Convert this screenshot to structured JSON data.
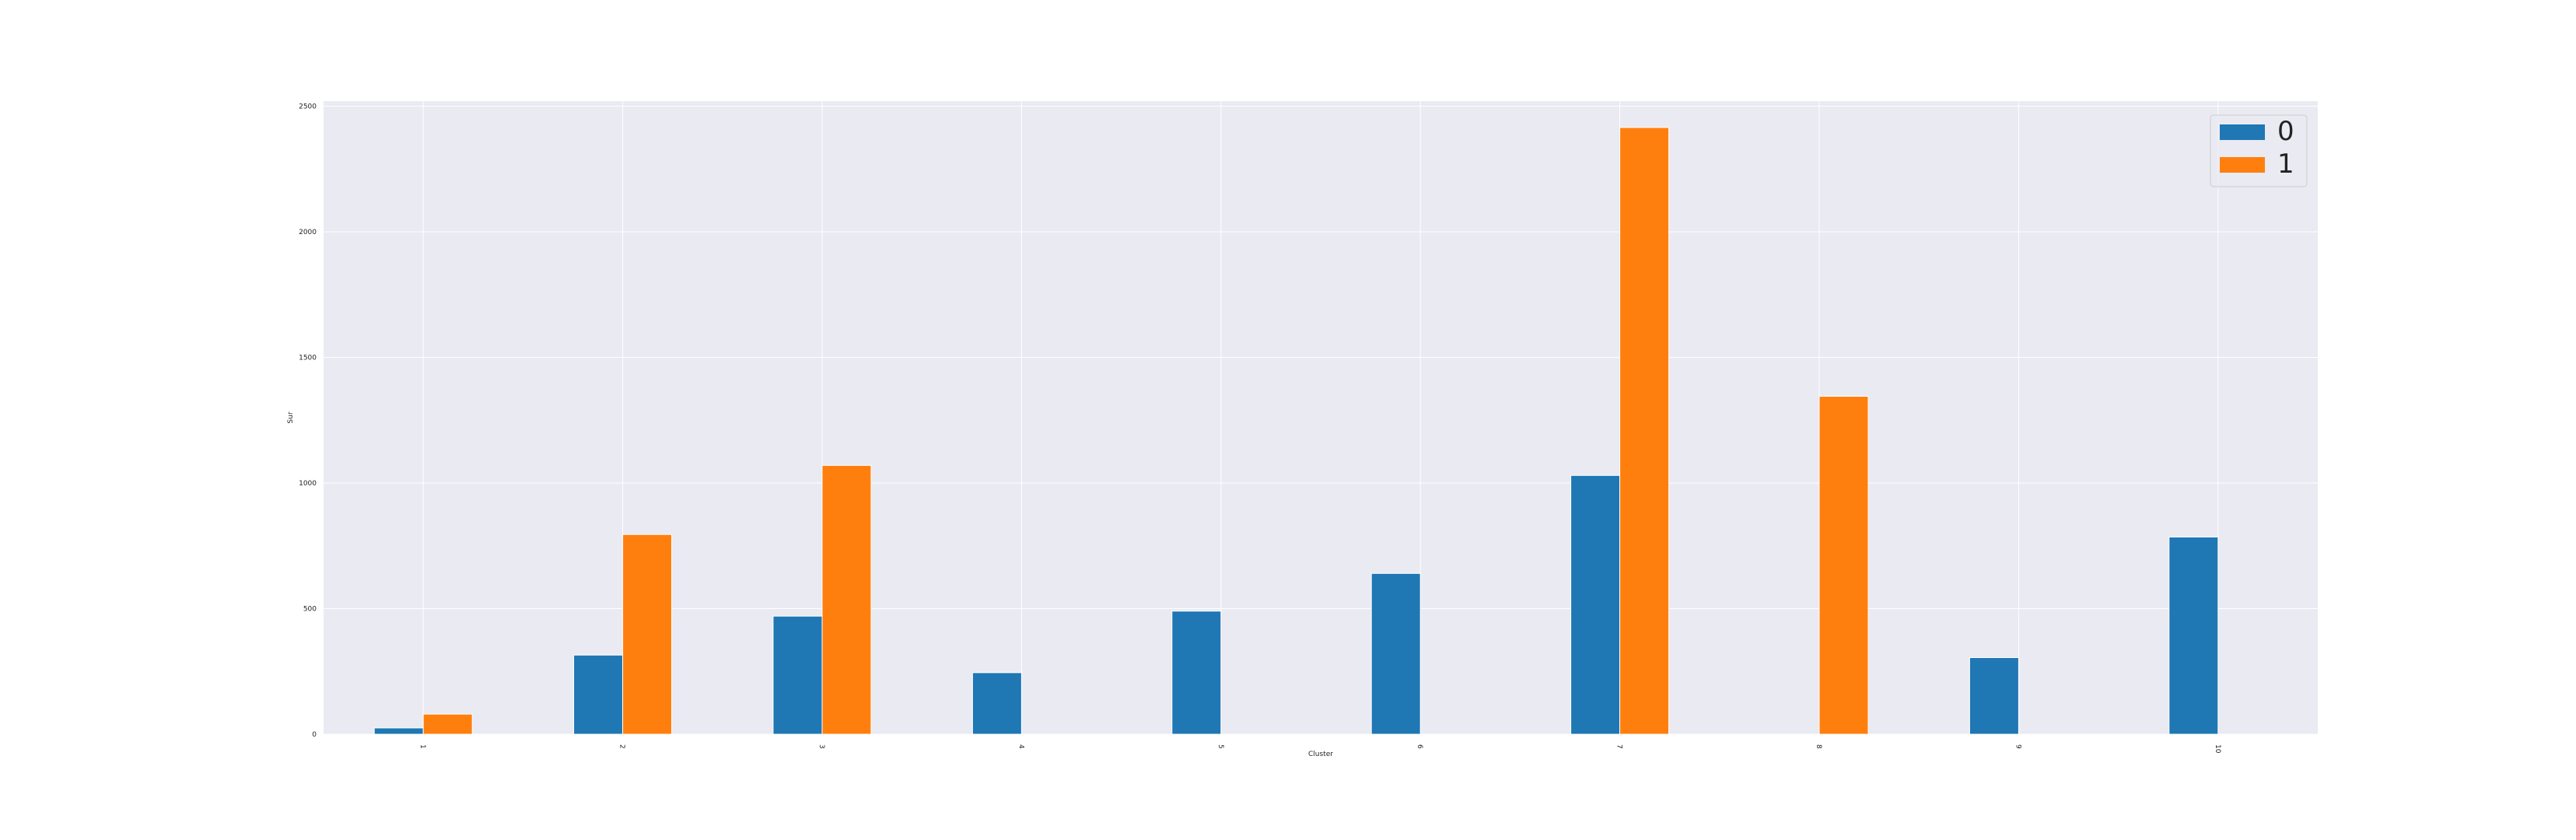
{
  "chart_data": {
    "type": "bar",
    "xlabel": "Cluster",
    "ylabel": "Sur",
    "categories": [
      "1",
      "2",
      "3",
      "4",
      "5",
      "6",
      "7",
      "8",
      "9",
      "10"
    ],
    "ylim": [
      0,
      2520
    ],
    "yticks": [
      0,
      500,
      1000,
      1500,
      2000,
      2500
    ],
    "grid": true,
    "legend_position": "top-right",
    "series": [
      {
        "name": "0",
        "color": "#1f77b4",
        "values": [
          25,
          315,
          470,
          245,
          490,
          640,
          1030,
          0,
          305,
          785
        ]
      },
      {
        "name": "1",
        "color": "#ff7f0e",
        "values": [
          80,
          795,
          1070,
          0,
          0,
          0,
          2415,
          1345,
          0,
          0
        ]
      }
    ]
  }
}
